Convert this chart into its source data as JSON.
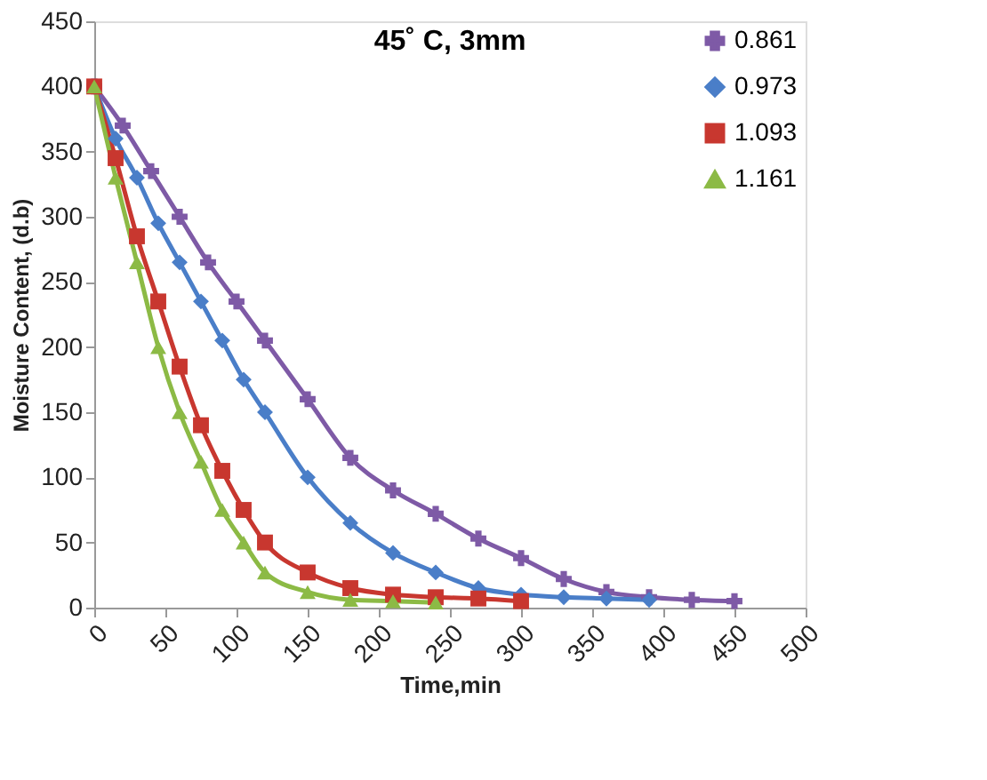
{
  "chart_data": {
    "type": "line",
    "title": "45˚ C, 3mm",
    "xlabel": "Time,min",
    "ylabel": "Moisture Content, (d.b)",
    "xlim": [
      0,
      500
    ],
    "xticks": [
      0,
      50,
      100,
      150,
      200,
      250,
      300,
      350,
      400,
      450,
      500
    ],
    "ylim": [
      0,
      450
    ],
    "yticks": [
      0,
      50,
      100,
      150,
      200,
      250,
      300,
      350,
      400,
      450
    ],
    "grid": false,
    "legend": "top right",
    "series": [
      {
        "name": "0.861",
        "color": "#7e5aa6",
        "marker": "cross",
        "x": [
          0,
          20,
          40,
          60,
          80,
          100,
          120,
          150,
          180,
          210,
          240,
          270,
          300,
          330,
          360,
          390,
          420,
          450
        ],
        "values": [
          400,
          370,
          335,
          300,
          265,
          235,
          205,
          160,
          115,
          90,
          72,
          53,
          38,
          22,
          12,
          8,
          6,
          5
        ]
      },
      {
        "name": "0.973",
        "color": "#4a7ec8",
        "marker": "diamond",
        "x": [
          0,
          15,
          30,
          45,
          60,
          75,
          90,
          105,
          120,
          150,
          180,
          210,
          240,
          270,
          300,
          330,
          360,
          390
        ],
        "values": [
          400,
          360,
          330,
          295,
          265,
          235,
          205,
          175,
          150,
          100,
          65,
          42,
          27,
          15,
          10,
          8,
          7,
          6
        ]
      },
      {
        "name": "1.093",
        "color": "#c8372f",
        "marker": "square",
        "x": [
          0,
          15,
          30,
          45,
          60,
          75,
          90,
          105,
          120,
          150,
          180,
          210,
          240,
          270,
          300
        ],
        "values": [
          400,
          345,
          285,
          235,
          185,
          140,
          105,
          75,
          50,
          27,
          15,
          10,
          8,
          7,
          5
        ]
      },
      {
        "name": "1.161",
        "color": "#8cba45",
        "marker": "triangle",
        "x": [
          0,
          15,
          30,
          45,
          60,
          75,
          90,
          105,
          120,
          150,
          180,
          210,
          240
        ],
        "values": [
          400,
          330,
          265,
          200,
          150,
          112,
          75,
          50,
          27,
          12,
          6,
          5,
          4
        ]
      }
    ]
  }
}
